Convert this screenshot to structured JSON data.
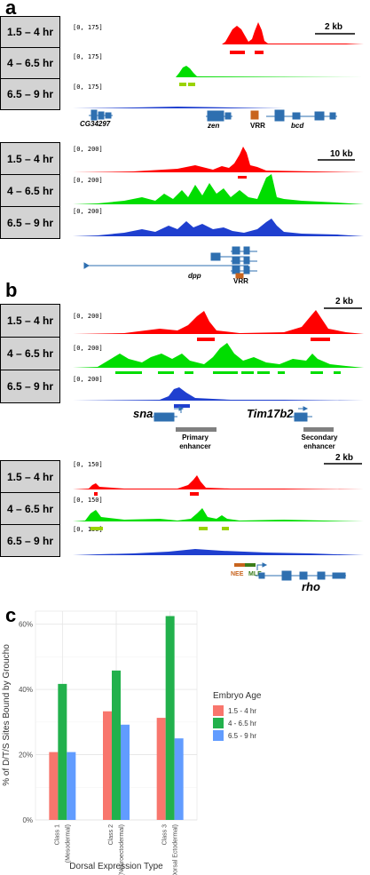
{
  "panels": {
    "a": "a",
    "b": "b",
    "c": "c"
  },
  "track_labels": [
    "1.5 – 4 hr",
    "4 – 6.5 hr",
    "6.5 – 9 hr"
  ],
  "ranges": {
    "a1": "[0, 175]",
    "a2": "[0, 200]",
    "b1": "[0, 200]",
    "b2": "[0, 150]"
  },
  "scales": {
    "a1": "2 kb",
    "a2": "10 kb",
    "b1": "2 kb",
    "b2": "2 kb"
  },
  "genes": {
    "cg": "CG34297",
    "zen": "zen",
    "vrr1": "VRR",
    "bcd": "bcd",
    "dpp": "dpp",
    "vrr2": "VRR",
    "sna": "sna",
    "tim": "Tim17b2",
    "nee": "NEE",
    "mle": "MLE",
    "rho": "rho"
  },
  "enhancers": {
    "primary_1": "Primary",
    "primary_2": "enhancer",
    "secondary_1": "Secondary",
    "secondary_2": "enhancer"
  },
  "colors": {
    "red": "#ff0000",
    "green": "#00dd00",
    "blue": "#1f3fcf",
    "gene": "#2e6fb0",
    "bar_red": "#f8766d",
    "bar_green": "#22b14c",
    "bar_blue": "#619cff"
  },
  "chart_data": {
    "type": "bar",
    "categories": [
      "Class 1 (Mesodermal)",
      "Class 2 (Neuroectodermal)",
      "Class 3 (Dorsal Ectodermal)"
    ],
    "category_lines": [
      [
        "Class 1",
        "(Mesodermal)"
      ],
      [
        "Class 2",
        "(Neuroectodermal)"
      ],
      [
        "Class 3",
        "(Dorsal Ectodermal)"
      ]
    ],
    "series": [
      {
        "name": "1.5 - 4 hr",
        "values": [
          20.8,
          33.3,
          31.3
        ]
      },
      {
        "name": "4 - 6.5 hr",
        "values": [
          41.7,
          45.8,
          62.5
        ]
      },
      {
        "name": "6.5 - 9 hr",
        "values": [
          20.8,
          29.2,
          25.0
        ]
      }
    ],
    "ylabel": "% of D/T/S Sites Bound by Groucho",
    "xlabel": "Dorsal Expression Type",
    "legend_title": "Embryo Age",
    "y_ticks": [
      "0%",
      "20%",
      "40%",
      "60%"
    ],
    "ylim": [
      0,
      64
    ],
    "legend_position": "right",
    "grid": true
  }
}
